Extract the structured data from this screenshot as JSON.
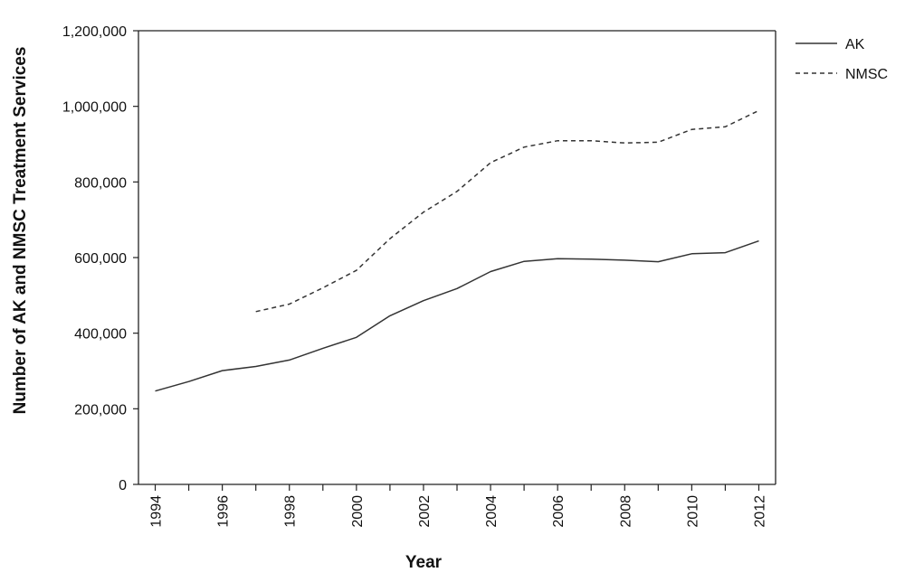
{
  "chart_data": {
    "type": "line",
    "title": "",
    "xlabel": "Year",
    "ylabel": "Number of AK and NMSC Treatment Services",
    "x": [
      1994,
      1995,
      1996,
      1997,
      1998,
      1999,
      2000,
      2001,
      2002,
      2003,
      2004,
      2005,
      2006,
      2007,
      2008,
      2009,
      2010,
      2011,
      2012
    ],
    "x_ticks": [
      "1994",
      "1996",
      "1998",
      "2000",
      "2002",
      "2004",
      "2006",
      "2008",
      "2010",
      "2012"
    ],
    "y_ticks": [
      "0",
      "200,000",
      "400,000",
      "600,000",
      "800,000",
      "1,000,000",
      "1,200,000"
    ],
    "xlim": [
      1993.5,
      2012.5
    ],
    "ylim": [
      0,
      1200000
    ],
    "grid": false,
    "legend_position": "top-right, outside plot",
    "series": [
      {
        "name": "AK",
        "style": "solid",
        "values": [
          247000,
          272000,
          301000,
          312000,
          329000,
          360000,
          389000,
          446000,
          486000,
          518000,
          563000,
          590000,
          597000,
          596000,
          593000,
          589000,
          610000,
          613000,
          644000
        ]
      },
      {
        "name": "NMSC",
        "style": "dashed",
        "values": [
          null,
          null,
          null,
          457000,
          477000,
          520000,
          566000,
          650000,
          720000,
          775000,
          851000,
          892000,
          909000,
          909000,
          903000,
          905000,
          939000,
          946000,
          989000
        ]
      }
    ],
    "colors": {
      "line": "#333333",
      "axis": "#222222",
      "text": "#111111"
    }
  }
}
